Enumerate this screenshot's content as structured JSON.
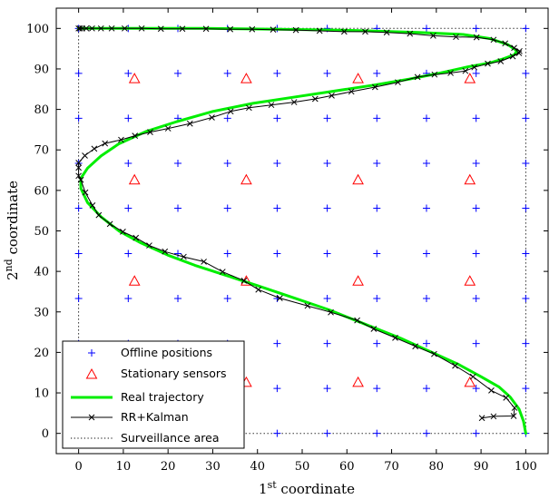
{
  "chart_data": {
    "type": "scatter",
    "xlabel": {
      "base": "1",
      "sup": "st",
      "rest": " coordinate"
    },
    "ylabel": {
      "base": "2",
      "sup": "nd",
      "rest": " coordinate"
    },
    "xlim": [
      -5,
      105
    ],
    "ylim": [
      -5,
      105
    ],
    "xticks": [
      0,
      10,
      20,
      30,
      40,
      50,
      60,
      70,
      80,
      90,
      100
    ],
    "yticks": [
      0,
      10,
      20,
      30,
      40,
      50,
      60,
      70,
      80,
      90,
      100
    ],
    "grid": false,
    "legend_position": "bottom-left",
    "colors": {
      "offline": "#0000ff",
      "sensors": "#ff0000",
      "real": "#00ee00",
      "estimate": "#000000",
      "area": "#000000"
    },
    "series": [
      {
        "name": "Offline positions",
        "marker": "plus",
        "grid_values": [
          0,
          11.1,
          22.2,
          33.3,
          44.4,
          55.6,
          66.7,
          77.8,
          88.9,
          100
        ]
      },
      {
        "name": "Stationary sensors",
        "marker": "triangle",
        "points": [
          [
            12.5,
            12.5
          ],
          [
            37.5,
            12.5
          ],
          [
            62.5,
            12.5
          ],
          [
            87.5,
            12.5
          ],
          [
            12.5,
            37.5
          ],
          [
            37.5,
            37.5
          ],
          [
            62.5,
            37.5
          ],
          [
            87.5,
            37.5
          ],
          [
            12.5,
            62.5
          ],
          [
            37.5,
            62.5
          ],
          [
            62.5,
            62.5
          ],
          [
            87.5,
            62.5
          ],
          [
            12.5,
            87.5
          ],
          [
            37.5,
            87.5
          ],
          [
            62.5,
            87.5
          ],
          [
            87.5,
            87.5
          ]
        ]
      },
      {
        "name": "Real trajectory",
        "line": "solid-thick",
        "points": [
          [
            100,
            0
          ],
          [
            99.5,
            3
          ],
          [
            98.5,
            6
          ],
          [
            96.5,
            9
          ],
          [
            94,
            11.5
          ],
          [
            90,
            14
          ],
          [
            85,
            17
          ],
          [
            79,
            20
          ],
          [
            72,
            23.5
          ],
          [
            64,
            27
          ],
          [
            56,
            30.5
          ],
          [
            48,
            33.5
          ],
          [
            40,
            36.5
          ],
          [
            33,
            39
          ],
          [
            26,
            41.5
          ],
          [
            20,
            44
          ],
          [
            14,
            47
          ],
          [
            9,
            50
          ],
          [
            5,
            53.5
          ],
          [
            2,
            57
          ],
          [
            0.5,
            60.5
          ],
          [
            0.5,
            63
          ],
          [
            2,
            65.5
          ],
          [
            5,
            68.5
          ],
          [
            9,
            71.5
          ],
          [
            15,
            74.5
          ],
          [
            22,
            77
          ],
          [
            30,
            79.5
          ],
          [
            39,
            81.5
          ],
          [
            48,
            83
          ],
          [
            57,
            84.5
          ],
          [
            66,
            86
          ],
          [
            74,
            87.5
          ],
          [
            81,
            89
          ],
          [
            87,
            90.5
          ],
          [
            92,
            91.5
          ],
          [
            95,
            92.5
          ],
          [
            97.5,
            93.5
          ],
          [
            98,
            94.5
          ],
          [
            96,
            96
          ],
          [
            92,
            97.5
          ],
          [
            86,
            98.5
          ],
          [
            76,
            99
          ],
          [
            62,
            99.5
          ],
          [
            45,
            99.8
          ],
          [
            28,
            100
          ],
          [
            12,
            100
          ],
          [
            2,
            100
          ],
          [
            0,
            100
          ]
        ]
      },
      {
        "name": "RR+Kalman",
        "line": "solid-x-markers",
        "points": [
          [
            90.2,
            3.8
          ],
          [
            92.8,
            4.2
          ],
          [
            97.3,
            4.3
          ],
          [
            97.5,
            6.3
          ],
          [
            95.6,
            8.8
          ],
          [
            92.3,
            10.6
          ],
          [
            88.2,
            14.0
          ],
          [
            84.2,
            16.7
          ],
          [
            79.5,
            19.6
          ],
          [
            75.3,
            21.5
          ],
          [
            70.8,
            23.6
          ],
          [
            66.0,
            25.8
          ],
          [
            62.3,
            27.9
          ],
          [
            56.4,
            29.9
          ],
          [
            51.2,
            31.5
          ],
          [
            45.0,
            33.4
          ],
          [
            40.2,
            35.5
          ],
          [
            37.0,
            37.7
          ],
          [
            32.2,
            39.9
          ],
          [
            28.0,
            42.4
          ],
          [
            23.5,
            43.6
          ],
          [
            19.3,
            44.9
          ],
          [
            15.8,
            46.4
          ],
          [
            12.8,
            48.3
          ],
          [
            9.9,
            49.8
          ],
          [
            7.0,
            51.7
          ],
          [
            4.5,
            53.9
          ],
          [
            3.1,
            56.3
          ],
          [
            1.5,
            59.5
          ],
          [
            0.5,
            62.6
          ],
          [
            0.0,
            63.6
          ],
          [
            0.0,
            65.6
          ],
          [
            0.0,
            66.8
          ],
          [
            1.4,
            68.6
          ],
          [
            3.5,
            70.3
          ],
          [
            5.9,
            71.6
          ],
          [
            9.5,
            72.5
          ],
          [
            12.6,
            73.5
          ],
          [
            16.0,
            74.4
          ],
          [
            20.0,
            75.3
          ],
          [
            24.9,
            76.5
          ],
          [
            29.8,
            78.0
          ],
          [
            34.0,
            79.5
          ],
          [
            38.1,
            80.4
          ],
          [
            43.1,
            81.1
          ],
          [
            48.2,
            81.8
          ],
          [
            52.9,
            82.6
          ],
          [
            56.6,
            83.4
          ],
          [
            61.0,
            84.4
          ],
          [
            66.3,
            85.5
          ],
          [
            71.4,
            86.7
          ],
          [
            75.8,
            88.0
          ],
          [
            79.6,
            88.6
          ],
          [
            83.2,
            89.0
          ],
          [
            86.5,
            89.5
          ],
          [
            88.5,
            90.4
          ],
          [
            91.5,
            91.3
          ],
          [
            94.4,
            91.9
          ],
          [
            97.1,
            93.1
          ],
          [
            98.5,
            93.9
          ],
          [
            98.6,
            94.4
          ],
          [
            97.4,
            95.2
          ],
          [
            95.4,
            96.3
          ],
          [
            92.8,
            97.2
          ],
          [
            89.0,
            97.8
          ],
          [
            84.4,
            97.9
          ],
          [
            79.3,
            98.2
          ],
          [
            74.1,
            98.7
          ],
          [
            68.9,
            99.0
          ],
          [
            64.1,
            99.2
          ],
          [
            59.4,
            99.2
          ],
          [
            53.9,
            99.4
          ],
          [
            48.6,
            99.6
          ],
          [
            43.5,
            99.7
          ],
          [
            38.8,
            99.8
          ],
          [
            33.9,
            99.8
          ],
          [
            28.5,
            99.9
          ],
          [
            23.2,
            99.9
          ],
          [
            18.4,
            99.9
          ],
          [
            14.1,
            100
          ],
          [
            10.3,
            100
          ],
          [
            7.4,
            100
          ],
          [
            5.0,
            100
          ],
          [
            3.0,
            100
          ],
          [
            1.7,
            100
          ],
          [
            0.8,
            100
          ],
          [
            0.3,
            100
          ],
          [
            0,
            100
          ]
        ]
      },
      {
        "name": "Surveillance area",
        "line": "dotted",
        "points": [
          [
            0,
            0
          ],
          [
            100,
            0
          ],
          [
            100,
            100
          ],
          [
            0,
            100
          ],
          [
            0,
            0
          ]
        ]
      }
    ]
  }
}
